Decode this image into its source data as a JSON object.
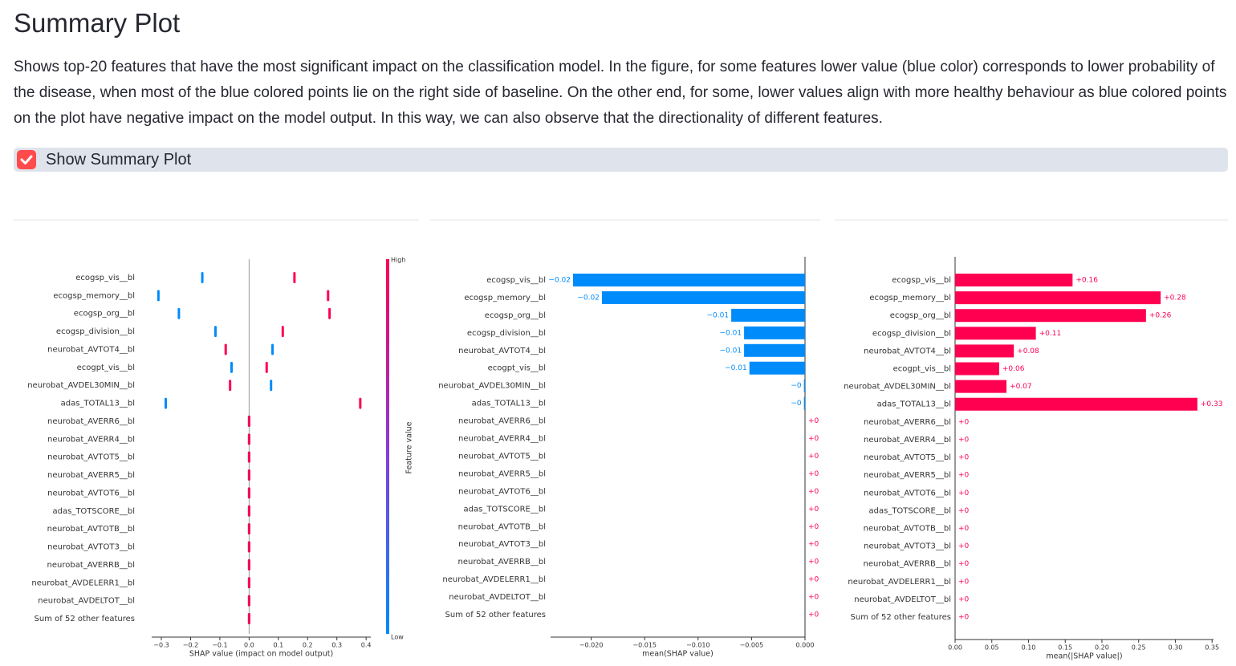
{
  "header": {
    "title": "Summary Plot",
    "description": "Shows top-20 features that have the most significant impact on the classification model. In the figure, for some features lower value (blue color) corresponds to lower probability of the disease, when most of the blue colored points lie on the right side of baseline. On the other end, for some, lower values align with more healthy behaviour as blue colored points on the plot have negative impact on the model output. In this way, we can also observe that the directionality of different features."
  },
  "checkbox": {
    "label": "Show Summary Plot",
    "checked": true
  },
  "chart_data": [
    {
      "type": "beeswarm",
      "x_label": "SHAP value (impact on model output)",
      "colorbar_label": "Feature value",
      "categories": [
        "ecogsp_vis__bl",
        "ecogsp_memory__bl",
        "ecogsp_org__bl",
        "ecogsp_division__bl",
        "neurobat_AVTOT4__bl",
        "ecogpt_vis__bl",
        "neurobat_AVDEL30MIN__bl",
        "adas_TOTAL13__bl",
        "neurobat_AVERR6__bl",
        "neurobat_AVERR4__bl",
        "neurobat_AVTOT5__bl",
        "neurobat_AVERR5__bl",
        "neurobat_AVTOT6__bl",
        "adas_TOTSCORE__bl",
        "neurobat_AVTOTB__bl",
        "neurobat_AVTOT3__bl",
        "neurobat_AVERRB__bl",
        "neurobat_AVDELERR1__bl",
        "neurobat_AVDELTOT__bl",
        "Sum of 52 other features"
      ],
      "series": [
        {
          "name": "Low",
          "color": "#008bfb",
          "values": [
            -0.16,
            -0.31,
            -0.24,
            -0.115,
            0.08,
            -0.06,
            0.075,
            -0.285,
            0,
            0,
            0,
            0,
            0,
            0,
            0,
            0,
            0,
            0,
            0,
            0
          ]
        },
        {
          "name": "High",
          "color": "#ff0051",
          "values": [
            0.155,
            0.27,
            0.275,
            0.115,
            -0.08,
            0.06,
            -0.065,
            0.38,
            0,
            0,
            0,
            0,
            0,
            0,
            0,
            0,
            0,
            0,
            0,
            0
          ]
        }
      ],
      "xlim": [
        -0.333,
        0.416
      ],
      "xticks": [
        {
          "value": -0.3,
          "label": "−0.3"
        },
        {
          "value": -0.2,
          "label": "−0.2"
        },
        {
          "value": -0.1,
          "label": "−0.1"
        },
        {
          "value": 0,
          "label": "0.0"
        },
        0.1,
        0.2,
        0.3,
        0.4
      ]
    },
    {
      "type": "bar",
      "x_label": "mean(SHAP value)",
      "color": "#008bfb",
      "positive_color": "#ff0051",
      "categories": [
        "ecogsp_vis__bl",
        "ecogsp_memory__bl",
        "ecogsp_org__bl",
        "ecogsp_division__bl",
        "neurobat_AVTOT4__bl",
        "ecogpt_vis__bl",
        "neurobat_AVDEL30MIN__bl",
        "adas_TOTAL13__bl",
        "neurobat_AVERR6__bl",
        "neurobat_AVERR4__bl",
        "neurobat_AVTOT5__bl",
        "neurobat_AVERR5__bl",
        "neurobat_AVTOT6__bl",
        "adas_TOTSCORE__bl",
        "neurobat_AVTOTB__bl",
        "neurobat_AVTOT3__bl",
        "neurobat_AVERRB__bl",
        "neurobat_AVDELERR1__bl",
        "neurobat_AVDELTOT__bl",
        "Sum of 52 other features"
      ],
      "values": [
        -0.0217,
        -0.019,
        -0.0069,
        -0.0057,
        -0.0057,
        -0.0052,
        -0.0001,
        -0.0001,
        0,
        0,
        0,
        0,
        0,
        0,
        0,
        0,
        0,
        0,
        0,
        0
      ],
      "value_labels": [
        "−0.02",
        "−0.02",
        "−0.01",
        "−0.01",
        "−0.01",
        "−0.01",
        "−0",
        "−0",
        "+0",
        "+0",
        "+0",
        "+0",
        "+0",
        "+0",
        "+0",
        "+0",
        "+0",
        "+0",
        "+0",
        "+0"
      ],
      "xlim": [
        -0.0238,
        0
      ],
      "xticks": [
        {
          "value": -0.02,
          "label": "−0.020"
        },
        {
          "value": -0.015,
          "label": "−0.015"
        },
        {
          "value": -0.01,
          "label": "−0.010"
        },
        {
          "value": -0.005,
          "label": "−0.005"
        },
        {
          "value": 0,
          "label": "0.000"
        }
      ]
    },
    {
      "type": "bar",
      "x_label": "mean(|SHAP value|)",
      "color": "#008bfb",
      "positive_color": "#ff0051",
      "categories": [
        "ecogsp_vis__bl",
        "ecogsp_memory__bl",
        "ecogsp_org__bl",
        "ecogsp_division__bl",
        "neurobat_AVTOT4__bl",
        "ecogpt_vis__bl",
        "neurobat_AVDEL30MIN__bl",
        "adas_TOTAL13__bl",
        "neurobat_AVERR6__bl",
        "neurobat_AVERR4__bl",
        "neurobat_AVTOT5__bl",
        "neurobat_AVERR5__bl",
        "neurobat_AVTOT6__bl",
        "adas_TOTSCORE__bl",
        "neurobat_AVTOTB__bl",
        "neurobat_AVTOT3__bl",
        "neurobat_AVERRB__bl",
        "neurobat_AVDELERR1__bl",
        "neurobat_AVDELTOT__bl",
        "Sum of 52 other features"
      ],
      "values": [
        0.16,
        0.28,
        0.26,
        0.11,
        0.08,
        0.06,
        0.07,
        0.33,
        0,
        0,
        0,
        0,
        0,
        0,
        0,
        0,
        0,
        0,
        0,
        0
      ],
      "value_labels": [
        "+0.16",
        "+0.28",
        "+0.26",
        "+0.11",
        "+0.08",
        "+0.06",
        "+0.07",
        "+0.33",
        "+0",
        "+0",
        "+0",
        "+0",
        "+0",
        "+0",
        "+0",
        "+0",
        "+0",
        "+0",
        "+0",
        "+0"
      ],
      "xlim": [
        0,
        0.352
      ],
      "xticks": [
        {
          "value": 0,
          "label": "0.00"
        },
        {
          "value": 0.05,
          "label": "0.05"
        },
        {
          "value": 0.1,
          "label": "0.10"
        },
        {
          "value": 0.15,
          "label": "0.15"
        },
        {
          "value": 0.2,
          "label": "0.20"
        },
        {
          "value": 0.25,
          "label": "0.25"
        },
        {
          "value": 0.3,
          "label": "0.30"
        },
        {
          "value": 0.35,
          "label": "0.35"
        }
      ]
    }
  ]
}
